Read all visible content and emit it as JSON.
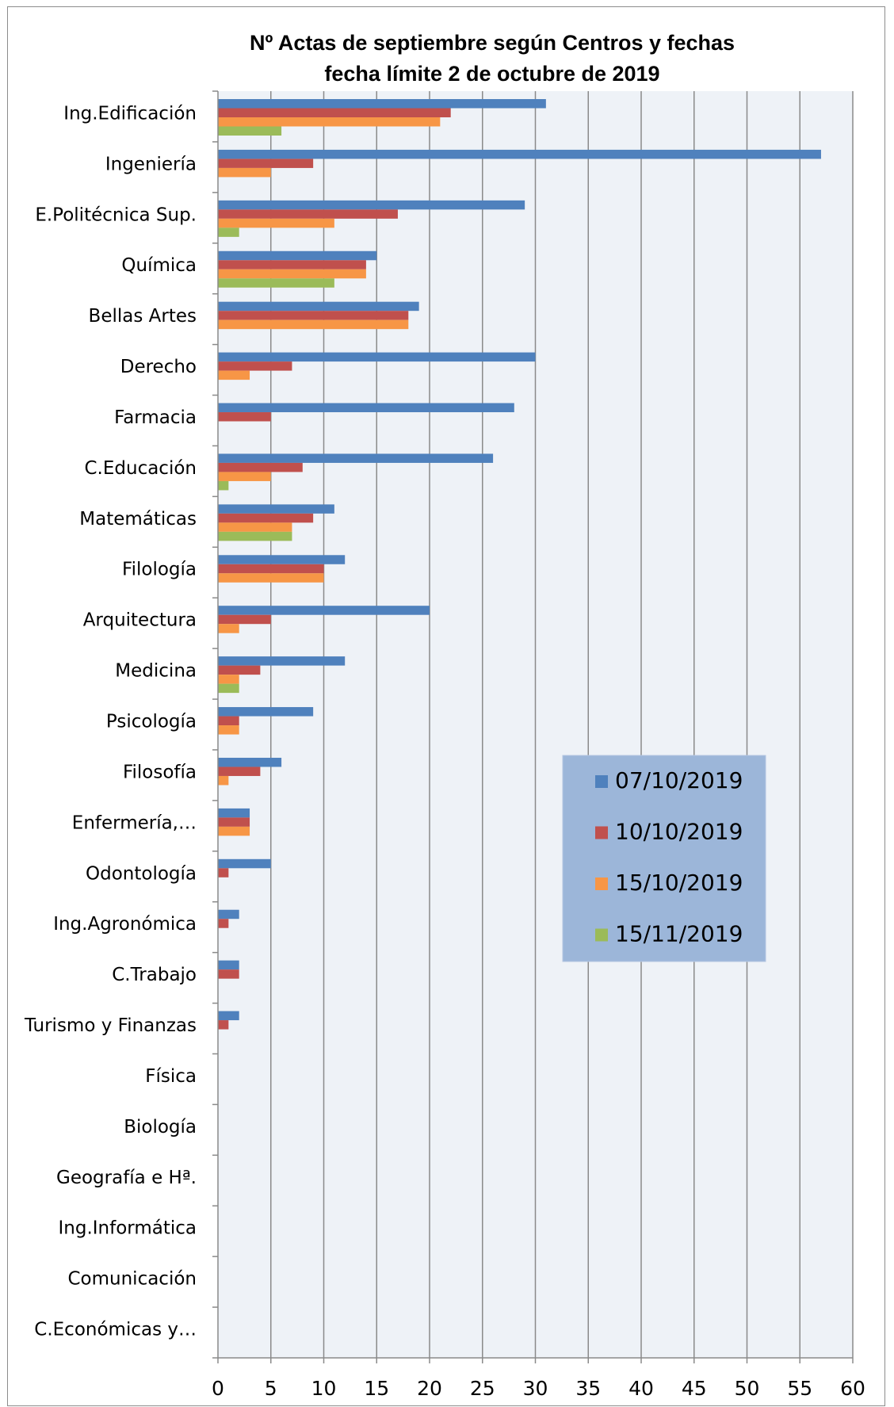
{
  "chart_data": {
    "type": "bar",
    "orientation": "horizontal",
    "title": "Nº Actas de septiembre según Centros y fechas",
    "subtitle": "fecha límite  2 de octubre de 2019",
    "xlabel": "",
    "ylabel": "",
    "xlim": [
      0,
      60
    ],
    "xticks": [
      "0",
      "5",
      "10",
      "15",
      "20",
      "25",
      "30",
      "35",
      "40",
      "45",
      "50",
      "55",
      "60"
    ],
    "grid": true,
    "legend_position": "right-middle",
    "plot_background": "#eef2f7",
    "legend_background": "#9cb6d9",
    "categories": [
      "Ing.Edificación",
      "Ingeniería",
      "E.Politécnica Sup.",
      "Química",
      "Bellas Artes",
      "Derecho",
      "Farmacia",
      "C.Educación",
      "Matemáticas",
      "Filología",
      "Arquitectura",
      "Medicina",
      "Psicología",
      "Filosofía",
      "Enfermería,…",
      "Odontología",
      "Ing.Agronómica",
      "C.Trabajo",
      "Turismo y Finanzas",
      "Física",
      "Biología",
      "Geografía e Hª.",
      "Ing.Informática",
      "Comunicación",
      "C.Económicas y…"
    ],
    "series": [
      {
        "name": "07/10/2019",
        "color": "#4f81bd",
        "values": [
          31,
          57,
          29,
          15,
          19,
          30,
          28,
          26,
          11,
          12,
          20,
          12,
          9,
          6,
          3,
          5,
          2,
          2,
          2,
          0,
          0,
          0,
          0,
          0,
          0
        ]
      },
      {
        "name": "10/10/2019",
        "color": "#c0504d",
        "values": [
          22,
          9,
          17,
          14,
          18,
          7,
          5,
          8,
          9,
          10,
          5,
          4,
          2,
          4,
          3,
          1,
          1,
          2,
          1,
          0,
          0,
          0,
          0,
          0,
          0
        ]
      },
      {
        "name": "15/10/2019",
        "color": "#f79646",
        "values": [
          21,
          5,
          11,
          14,
          18,
          3,
          0,
          5,
          7,
          10,
          2,
          2,
          2,
          1,
          3,
          0,
          0,
          0,
          0,
          0,
          0,
          0,
          0,
          0,
          0
        ]
      },
      {
        "name": "15/11/2019",
        "color": "#9bbb59",
        "values": [
          6,
          0,
          2,
          11,
          0,
          0,
          0,
          1,
          7,
          0,
          0,
          2,
          0,
          0,
          0,
          0,
          0,
          0,
          0,
          0,
          0,
          0,
          0,
          0,
          0
        ]
      }
    ]
  }
}
